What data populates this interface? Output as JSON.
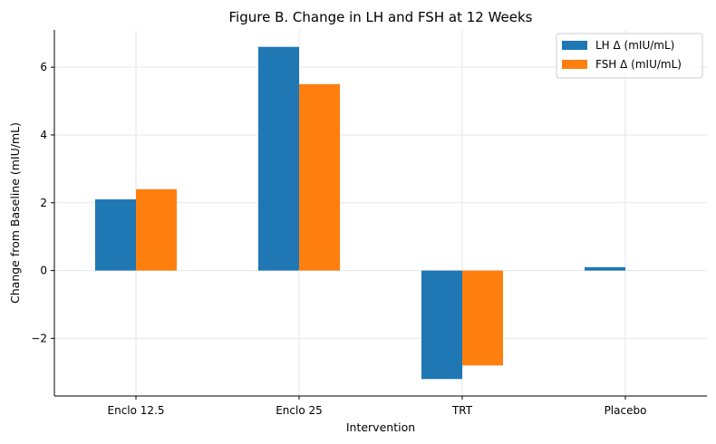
{
  "chart_data": {
    "type": "bar",
    "title": "Figure B. Change in LH and FSH at 12 Weeks",
    "xlabel": "Intervention",
    "ylabel": "Change from Baseline (mIU/mL)",
    "categories": [
      "Enclo 12.5",
      "Enclo 25",
      "TRT",
      "Placebo"
    ],
    "series": [
      {
        "name": "LH Δ (mIU/mL)",
        "values": [
          2.1,
          6.6,
          -3.2,
          0.1
        ],
        "color": "#1f77b4"
      },
      {
        "name": "FSH Δ (mIU/mL)",
        "values": [
          2.4,
          5.5,
          -2.8,
          0.0
        ],
        "color": "#ff7f0e"
      }
    ],
    "ylim": [
      -3.7,
      7.1
    ],
    "yticks": [
      -2,
      0,
      2,
      4,
      6
    ],
    "ytick_labels": [
      "−2",
      "0",
      "2",
      "4",
      "6"
    ],
    "grid": true,
    "legend_position": "top-right"
  }
}
